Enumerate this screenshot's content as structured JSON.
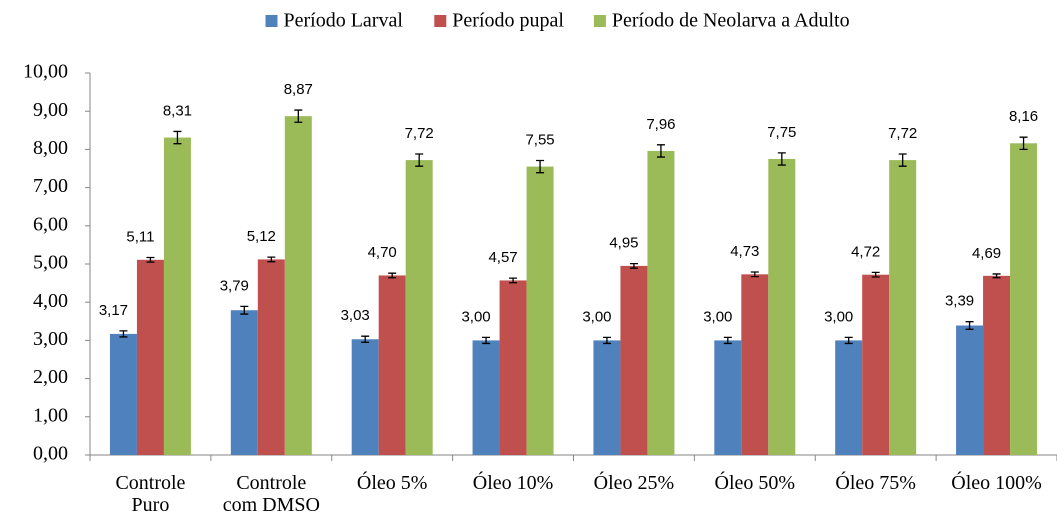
{
  "chart_data": {
    "type": "bar",
    "categories": [
      "Controle\nPuro",
      "Controle\ncom DMSO",
      "Óleo 5%",
      "Óleo 10%",
      "Óleo 25%",
      "Óleo 50%",
      "Óleo 75%",
      "Óleo 100%"
    ],
    "series": [
      {
        "name": "Período Larval",
        "color": "#4f81bd",
        "values": [
          3.17,
          3.79,
          3.03,
          3.0,
          3.0,
          3.0,
          3.0,
          3.39
        ],
        "value_labels": [
          "3,17",
          "3,79",
          "3,03",
          "3,00",
          "3,00",
          "3,00",
          "3,00",
          "3,39"
        ],
        "errors": [
          0.08,
          0.1,
          0.08,
          0.08,
          0.08,
          0.08,
          0.08,
          0.1
        ]
      },
      {
        "name": "Período pupal",
        "color": "#c0504d",
        "values": [
          5.11,
          5.12,
          4.7,
          4.57,
          4.95,
          4.73,
          4.72,
          4.69
        ],
        "value_labels": [
          "5,11",
          "5,12",
          "4,70",
          "4,57",
          "4,95",
          "4,73",
          "4,72",
          "4,69"
        ],
        "errors": [
          0.06,
          0.06,
          0.06,
          0.06,
          0.06,
          0.06,
          0.06,
          0.05
        ]
      },
      {
        "name": "Período de Neolarva a Adulto",
        "color": "#9bbb59",
        "values": [
          8.31,
          8.87,
          7.72,
          7.55,
          7.96,
          7.75,
          7.72,
          8.16
        ],
        "value_labels": [
          "8,31",
          "8,87",
          "7,72",
          "7,55",
          "7,96",
          "7,75",
          "7,72",
          "8,16"
        ],
        "errors": [
          0.16,
          0.16,
          0.16,
          0.16,
          0.16,
          0.16,
          0.16,
          0.16
        ]
      }
    ],
    "ylim": [
      0,
      10
    ],
    "yticks": [
      {
        "value": 0,
        "label": "0,00"
      },
      {
        "value": 1,
        "label": "1,00"
      },
      {
        "value": 2,
        "label": "2,00"
      },
      {
        "value": 3,
        "label": "3,00"
      },
      {
        "value": 4,
        "label": "4,00"
      },
      {
        "value": 5,
        "label": "5,00"
      },
      {
        "value": 6,
        "label": "6,00"
      },
      {
        "value": 7,
        "label": "7,00"
      },
      {
        "value": 8,
        "label": "8,00"
      },
      {
        "value": 9,
        "label": "9,00"
      },
      {
        "value": 10,
        "label": "10,00"
      }
    ],
    "legend": "top",
    "grid": false
  }
}
